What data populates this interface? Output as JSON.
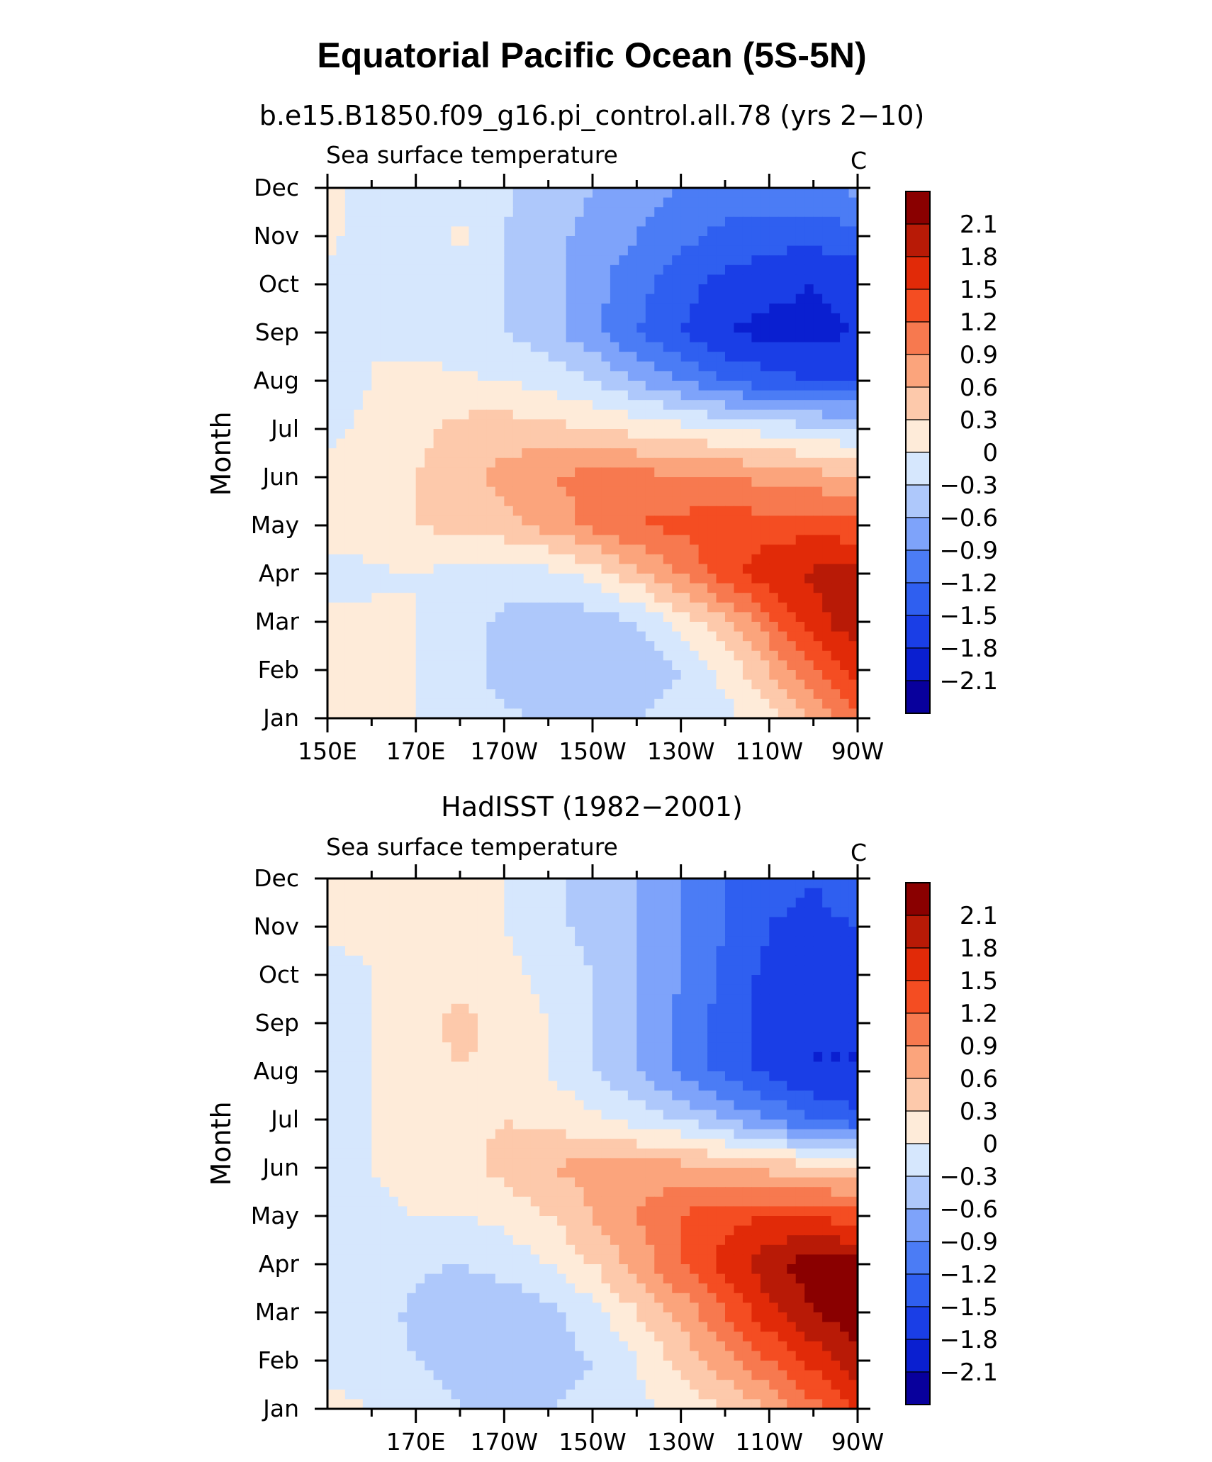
{
  "figure_title": "Equatorial Pacific Ocean (5S-5N)",
  "palette": {
    "levels": [
      -2.1,
      -1.8,
      -1.5,
      -1.2,
      -0.9,
      -0.6,
      -0.3,
      0,
      0.3,
      0.6,
      0.9,
      1.2,
      1.5,
      1.8,
      2.1
    ],
    "colors": [
      "#08009c",
      "#0a1fd0",
      "#1a3ee6",
      "#2f5ff0",
      "#4b7cf5",
      "#7ea3fa",
      "#aec8fb",
      "#d6e7fd",
      "#feebd9",
      "#fdc9ab",
      "#fba47c",
      "#f7794f",
      "#f44d22",
      "#e12a08",
      "#b81a06",
      "#8a0000"
    ]
  },
  "chart_data": [
    {
      "type": "heatmap",
      "title": "b.e15.B1850.f09_g16.pi_control.all.78 (yrs 2−10)",
      "left_string": "Sea surface temperature",
      "units": "C",
      "ylabel": "Month",
      "y_categories": [
        "Jan",
        "Feb",
        "Mar",
        "Apr",
        "May",
        "Jun",
        "Jul",
        "Aug",
        "Sep",
        "Oct",
        "Nov",
        "Dec"
      ],
      "x_range": [
        150,
        270
      ],
      "x_unit": "longitude (degrees east)",
      "x_ticks": [
        {
          "value": 150,
          "label": "150E"
        },
        {
          "value": 170,
          "label": "170E"
        },
        {
          "value": 190,
          "label": "170W"
        },
        {
          "value": 210,
          "label": "150W"
        },
        {
          "value": 230,
          "label": "130W"
        },
        {
          "value": 250,
          "label": "110W"
        },
        {
          "value": 270,
          "label": "90W"
        }
      ],
      "x_grid": [
        150,
        160,
        170,
        180,
        190,
        200,
        210,
        220,
        230,
        240,
        250,
        260,
        270
      ],
      "colorbar_labels": [
        "2.1",
        "1.8",
        "1.5",
        "1.2",
        "0.9",
        "0.6",
        "0.3",
        "0",
        "−0.3",
        "−0.6",
        "−0.9",
        "−1.2",
        "−1.5",
        "−1.8",
        "−2.1"
      ],
      "values": [
        [
          0.1,
          0.1,
          0.0,
          -0.15,
          -0.25,
          -0.35,
          -0.3,
          -0.3,
          -0.2,
          -0.1,
          0.2,
          0.6,
          1.2
        ],
        [
          0.1,
          0.1,
          0.0,
          -0.2,
          -0.4,
          -0.55,
          -0.6,
          -0.5,
          -0.3,
          0.1,
          0.6,
          1.2,
          1.6
        ],
        [
          0.05,
          0.05,
          0.0,
          -0.2,
          -0.35,
          -0.45,
          -0.45,
          -0.3,
          0.1,
          0.5,
          1.1,
          1.7,
          2.0
        ],
        [
          -0.1,
          -0.05,
          0.0,
          -0.1,
          -0.2,
          -0.1,
          0.1,
          0.5,
          0.9,
          1.4,
          1.7,
          1.85,
          1.9
        ],
        [
          0.1,
          0.15,
          0.3,
          0.4,
          0.5,
          0.7,
          1.0,
          1.2,
          1.3,
          1.35,
          1.35,
          1.4,
          1.3
        ],
        [
          0.1,
          0.15,
          0.3,
          0.5,
          0.7,
          0.9,
          1.0,
          1.0,
          0.95,
          0.9,
          0.8,
          0.7,
          0.6
        ],
        [
          -0.1,
          0.1,
          0.2,
          0.4,
          0.45,
          0.4,
          0.3,
          0.2,
          0.1,
          0.0,
          -0.1,
          -0.2,
          -0.3
        ],
        [
          -0.2,
          0.0,
          0.1,
          0.05,
          0.0,
          -0.1,
          -0.3,
          -0.6,
          -0.9,
          -1.2,
          -1.4,
          -1.5,
          -1.5
        ],
        [
          -0.1,
          0.0,
          -0.1,
          -0.2,
          -0.3,
          -0.5,
          -0.8,
          -1.2,
          -1.5,
          -1.8,
          -1.9,
          -1.9,
          -1.8
        ],
        [
          -0.05,
          -0.1,
          -0.2,
          -0.2,
          -0.3,
          -0.5,
          -0.8,
          -1.1,
          -1.4,
          -1.6,
          -1.7,
          -1.8,
          -1.7
        ],
        [
          0.05,
          -0.1,
          -0.2,
          0.1,
          -0.3,
          -0.5,
          -0.7,
          -0.9,
          -1.1,
          -1.3,
          -1.4,
          -1.4,
          -1.3
        ],
        [
          0.05,
          -0.1,
          -0.2,
          -0.25,
          -0.25,
          -0.4,
          -0.6,
          -0.8,
          -0.9,
          -1.0,
          -1.0,
          -1.0,
          -0.8
        ]
      ]
    },
    {
      "type": "heatmap",
      "title": "HadISST (1982−2001)",
      "left_string": "Sea surface temperature",
      "units": "C",
      "ylabel": "Month",
      "y_categories": [
        "Jan",
        "Feb",
        "Mar",
        "Apr",
        "May",
        "Jun",
        "Jul",
        "Aug",
        "Sep",
        "Oct",
        "Nov",
        "Dec"
      ],
      "x_range": [
        150,
        270
      ],
      "x_unit": "longitude (degrees east)",
      "x_ticks": [
        {
          "value": 170,
          "label": "170E"
        },
        {
          "value": 190,
          "label": "170W"
        },
        {
          "value": 210,
          "label": "150W"
        },
        {
          "value": 230,
          "label": "130W"
        },
        {
          "value": 250,
          "label": "110W"
        },
        {
          "value": 270,
          "label": "90W"
        }
      ],
      "x_grid": [
        160,
        170,
        180,
        190,
        200,
        210,
        220,
        230,
        240,
        250,
        260,
        270
      ],
      "colorbar_labels": [
        "2.1",
        "1.8",
        "1.5",
        "1.2",
        "0.9",
        "0.6",
        "0.3",
        "0",
        "−0.3",
        "−0.6",
        "−0.9",
        "−1.2",
        "−1.5",
        "−1.8",
        "−2.1"
      ],
      "values": [
        [
          0.1,
          0.0,
          -0.1,
          -0.3,
          -0.4,
          -0.3,
          -0.2,
          -0.1,
          0.1,
          0.3,
          0.6,
          1.1,
          1.5
        ],
        [
          -0.1,
          -0.2,
          -0.3,
          -0.45,
          -0.5,
          -0.45,
          -0.3,
          0.0,
          0.4,
          0.8,
          1.2,
          1.6,
          2.0
        ],
        [
          -0.1,
          -0.2,
          -0.35,
          -0.5,
          -0.5,
          -0.4,
          -0.1,
          0.3,
          0.7,
          1.2,
          1.7,
          2.1,
          2.3
        ],
        [
          -0.1,
          -0.15,
          -0.25,
          -0.3,
          -0.2,
          0.0,
          0.3,
          0.7,
          1.2,
          1.6,
          2.0,
          2.3,
          2.2
        ],
        [
          -0.1,
          -0.05,
          0.0,
          0.0,
          0.1,
          0.3,
          0.6,
          0.9,
          1.2,
          1.4,
          1.5,
          1.5,
          1.3
        ],
        [
          -0.1,
          0.0,
          0.1,
          0.2,
          0.4,
          0.6,
          0.7,
          0.7,
          0.7,
          0.6,
          0.5,
          0.4,
          0.3
        ],
        [
          -0.1,
          0.0,
          0.2,
          0.2,
          0.3,
          0.2,
          0.1,
          -0.1,
          -0.3,
          -0.6,
          -0.9,
          -1.2,
          -1.4
        ],
        [
          -0.2,
          0.0,
          0.1,
          0.3,
          0.2,
          0.0,
          -0.3,
          -0.6,
          -1.0,
          -1.3,
          -1.6,
          -1.8,
          -1.8
        ],
        [
          -0.1,
          0.0,
          0.2,
          0.4,
          0.2,
          0.0,
          -0.3,
          -0.6,
          -1.0,
          -1.3,
          -1.6,
          -1.8,
          -1.8
        ],
        [
          -0.1,
          0.0,
          0.1,
          0.15,
          0.1,
          -0.1,
          -0.3,
          -0.6,
          -0.9,
          -1.3,
          -1.6,
          -1.7,
          -1.7
        ],
        [
          0.05,
          0.05,
          0.1,
          0.1,
          0.0,
          -0.2,
          -0.4,
          -0.6,
          -0.9,
          -1.2,
          -1.5,
          -1.6,
          -1.5
        ],
        [
          0.05,
          0.05,
          0.1,
          0.1,
          0.0,
          -0.2,
          -0.4,
          -0.6,
          -0.9,
          -1.2,
          -1.4,
          -1.5,
          -1.2
        ]
      ]
    }
  ]
}
